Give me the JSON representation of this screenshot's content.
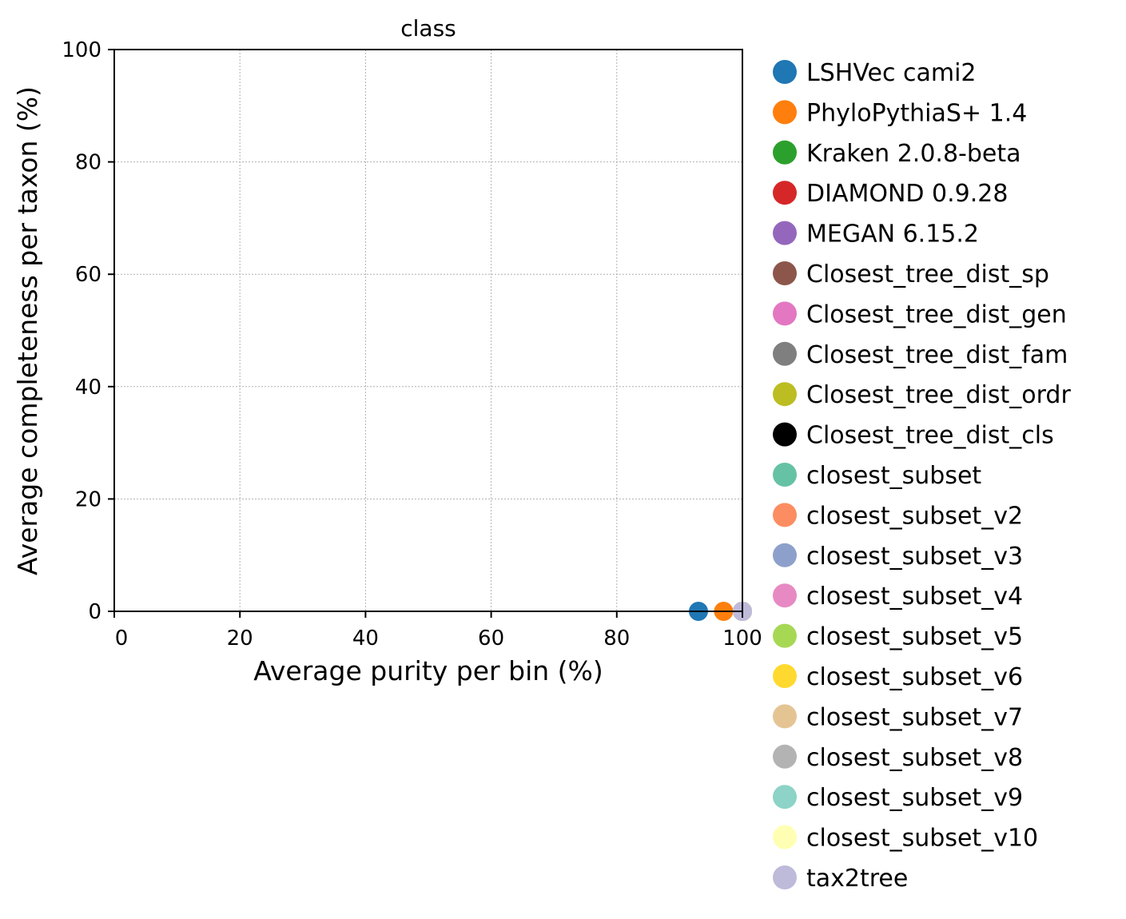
{
  "chart_data": {
    "type": "scatter",
    "title": "class",
    "xlabel": "Average purity per bin (%)",
    "ylabel": "Average completeness per taxon (%)",
    "xlim": [
      0,
      100
    ],
    "ylim": [
      0,
      100
    ],
    "xticks": [
      0,
      20,
      40,
      60,
      80,
      100
    ],
    "yticks": [
      0,
      20,
      40,
      60,
      80,
      100
    ],
    "grid": true,
    "legend_position": "outside-right",
    "series": [
      {
        "name": "LSHVec cami2",
        "color": "#1f77b4",
        "x": 93.0,
        "y": 0.0
      },
      {
        "name": "PhyloPythiaS+ 1.4",
        "color": "#ff7f0e",
        "x": 97.0,
        "y": 0.0
      },
      {
        "name": "Kraken 2.0.8-beta",
        "color": "#2ca02c",
        "x": 100.0,
        "y": 0.0
      },
      {
        "name": "DIAMOND 0.9.28",
        "color": "#d62728",
        "x": 100.0,
        "y": 0.0
      },
      {
        "name": "MEGAN 6.15.2",
        "color": "#9467bd",
        "x": 100.0,
        "y": 0.0
      },
      {
        "name": "Closest_tree_dist_sp",
        "color": "#8c564b",
        "x": 100.0,
        "y": 0.0
      },
      {
        "name": "Closest_tree_dist_gen",
        "color": "#e377c2",
        "x": 100.0,
        "y": 0.0
      },
      {
        "name": "Closest_tree_dist_fam",
        "color": "#7f7f7f",
        "x": 100.0,
        "y": 0.0
      },
      {
        "name": "Closest_tree_dist_ordr",
        "color": "#bcbd22",
        "x": 100.0,
        "y": 0.0
      },
      {
        "name": "Closest_tree_dist_cls",
        "color": "#000000",
        "x": 100.0,
        "y": 0.0
      },
      {
        "name": "closest_subset",
        "color": "#66c2a5",
        "x": 100.0,
        "y": 0.0
      },
      {
        "name": "closest_subset_v2",
        "color": "#fc8d62",
        "x": 100.0,
        "y": 0.0
      },
      {
        "name": "closest_subset_v3",
        "color": "#8da0cb",
        "x": 100.0,
        "y": 0.0
      },
      {
        "name": "closest_subset_v4",
        "color": "#e78ac3",
        "x": 100.0,
        "y": 0.0
      },
      {
        "name": "closest_subset_v5",
        "color": "#a6d854",
        "x": 100.0,
        "y": 0.0
      },
      {
        "name": "closest_subset_v6",
        "color": "#ffd92f",
        "x": 100.0,
        "y": 0.0
      },
      {
        "name": "closest_subset_v7",
        "color": "#e5c494",
        "x": 100.0,
        "y": 0.0
      },
      {
        "name": "closest_subset_v8",
        "color": "#b3b3b3",
        "x": 100.0,
        "y": 0.0
      },
      {
        "name": "closest_subset_v9",
        "color": "#8dd3c7",
        "x": 100.0,
        "y": 0.0
      },
      {
        "name": "closest_subset_v10",
        "color": "#ffffb3",
        "x": 100.0,
        "y": 0.0
      },
      {
        "name": "tax2tree",
        "color": "#bebada",
        "x": 100.0,
        "y": 0.0
      }
    ]
  }
}
